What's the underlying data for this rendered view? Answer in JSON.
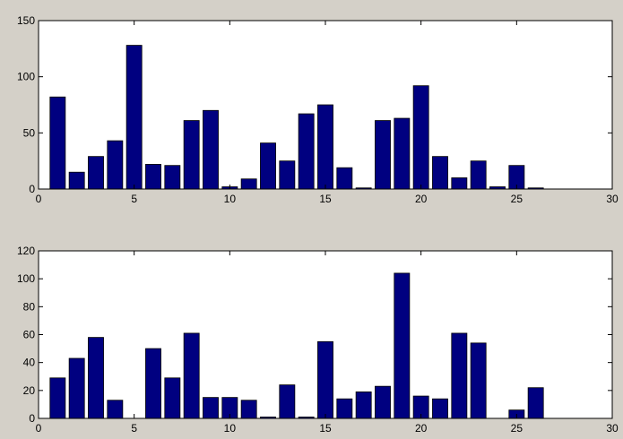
{
  "chart_data": [
    {
      "type": "bar",
      "color": "#000080",
      "x": [
        1,
        2,
        3,
        4,
        5,
        6,
        7,
        8,
        9,
        10,
        11,
        12,
        13,
        14,
        15,
        16,
        17,
        18,
        19,
        20,
        21,
        22,
        23,
        24,
        25,
        26
      ],
      "values": [
        82,
        15,
        29,
        43,
        128,
        22,
        21,
        61,
        70,
        2,
        9,
        41,
        25,
        67,
        75,
        19,
        1,
        61,
        63,
        92,
        29,
        10,
        25,
        2,
        21,
        1
      ],
      "xlim": [
        0,
        30
      ],
      "xticks": [
        0,
        5,
        10,
        15,
        20,
        25,
        30
      ],
      "ylim": [
        0,
        150
      ],
      "yticks": [
        0,
        50,
        100,
        150
      ]
    },
    {
      "type": "bar",
      "color": "#000080",
      "x": [
        1,
        2,
        3,
        4,
        5,
        6,
        7,
        8,
        9,
        10,
        11,
        12,
        13,
        14,
        15,
        16,
        17,
        18,
        19,
        20,
        21,
        22,
        23,
        24,
        25,
        26
      ],
      "values": [
        29,
        43,
        58,
        13,
        0,
        50,
        29,
        61,
        15,
        15,
        13,
        1,
        24,
        1,
        55,
        14,
        19,
        23,
        104,
        16,
        14,
        61,
        54,
        0,
        6,
        22
      ],
      "xlim": [
        0,
        30
      ],
      "xticks": [
        0,
        5,
        10,
        15,
        20,
        25,
        30
      ],
      "ylim": [
        0,
        120
      ],
      "yticks": [
        0,
        20,
        40,
        60,
        80,
        100,
        120
      ]
    }
  ]
}
